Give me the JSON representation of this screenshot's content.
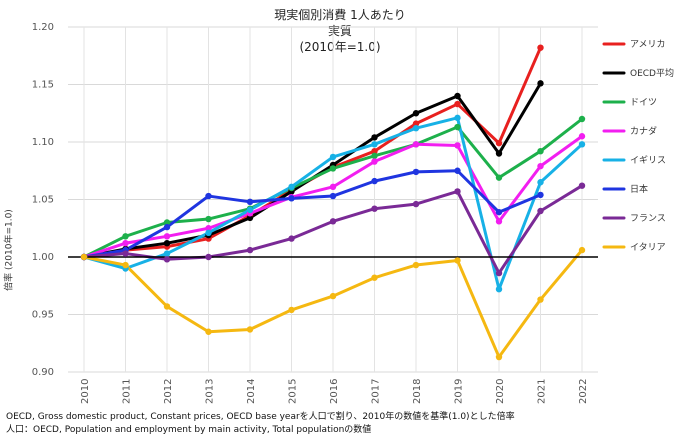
{
  "chart_data": {
    "type": "line",
    "title": "現実個別消費 1人あたり",
    "subtitle": "実質",
    "subtitle2": "(2010年=1.0)",
    "ylabel": "倍率 (2010年=1.0)",
    "xlabel": "",
    "x": [
      "2010",
      "2011",
      "2012",
      "2013",
      "2014",
      "2015",
      "2016",
      "2017",
      "2018",
      "2019",
      "2020",
      "2021",
      "2022"
    ],
    "ylim": [
      0.9,
      1.2
    ],
    "yticks": [
      "0.90",
      "0.95",
      "1.00",
      "1.05",
      "1.10",
      "1.15",
      "1.20"
    ],
    "legend_position": "right",
    "series": [
      {
        "name": "アメリカ",
        "color": "#e8201f",
        "values": [
          1.0,
          1.006,
          1.009,
          1.016,
          1.036,
          1.058,
          1.078,
          1.092,
          1.116,
          1.133,
          1.099,
          1.182,
          null
        ]
      },
      {
        "name": "OECD平均",
        "color": "#000000",
        "values": [
          1.0,
          1.007,
          1.012,
          1.019,
          1.034,
          1.057,
          1.08,
          1.104,
          1.125,
          1.14,
          1.09,
          1.151,
          null
        ]
      },
      {
        "name": "ドイツ",
        "color": "#1db04b",
        "values": [
          1.0,
          1.018,
          1.03,
          1.033,
          1.042,
          1.06,
          1.077,
          1.088,
          1.098,
          1.113,
          1.069,
          1.092,
          1.12
        ]
      },
      {
        "name": "カナダ",
        "color": "#f21ef0",
        "values": [
          1.0,
          1.012,
          1.018,
          1.025,
          1.038,
          1.052,
          1.061,
          1.083,
          1.098,
          1.097,
          1.031,
          1.079,
          1.105
        ]
      },
      {
        "name": "イギリス",
        "color": "#17b1e6",
        "values": [
          1.0,
          0.99,
          1.003,
          1.021,
          1.041,
          1.061,
          1.087,
          1.098,
          1.112,
          1.121,
          0.972,
          1.065,
          1.098
        ]
      },
      {
        "name": "日本",
        "color": "#1f35e0",
        "values": [
          1.0,
          1.006,
          1.026,
          1.053,
          1.048,
          1.051,
          1.053,
          1.066,
          1.074,
          1.075,
          1.039,
          1.054,
          null
        ]
      },
      {
        "name": "フランス",
        "color": "#7a2a96",
        "values": [
          1.0,
          1.003,
          0.998,
          1.0,
          1.006,
          1.016,
          1.031,
          1.042,
          1.046,
          1.057,
          0.986,
          1.04,
          1.062
        ]
      },
      {
        "name": "イタリア",
        "color": "#f5b811",
        "values": [
          1.0,
          0.993,
          0.957,
          0.935,
          0.937,
          0.954,
          0.966,
          0.982,
          0.993,
          0.997,
          0.913,
          0.963,
          1.006
        ]
      }
    ]
  },
  "notes": [
    "OECD, Gross domestic product, Constant prices, OECD base yearを人口で割り、2010年の数値を基準(1.0)とした倍率",
    "人口：OECD, Population and employment by main activity, Total populationの数値"
  ]
}
